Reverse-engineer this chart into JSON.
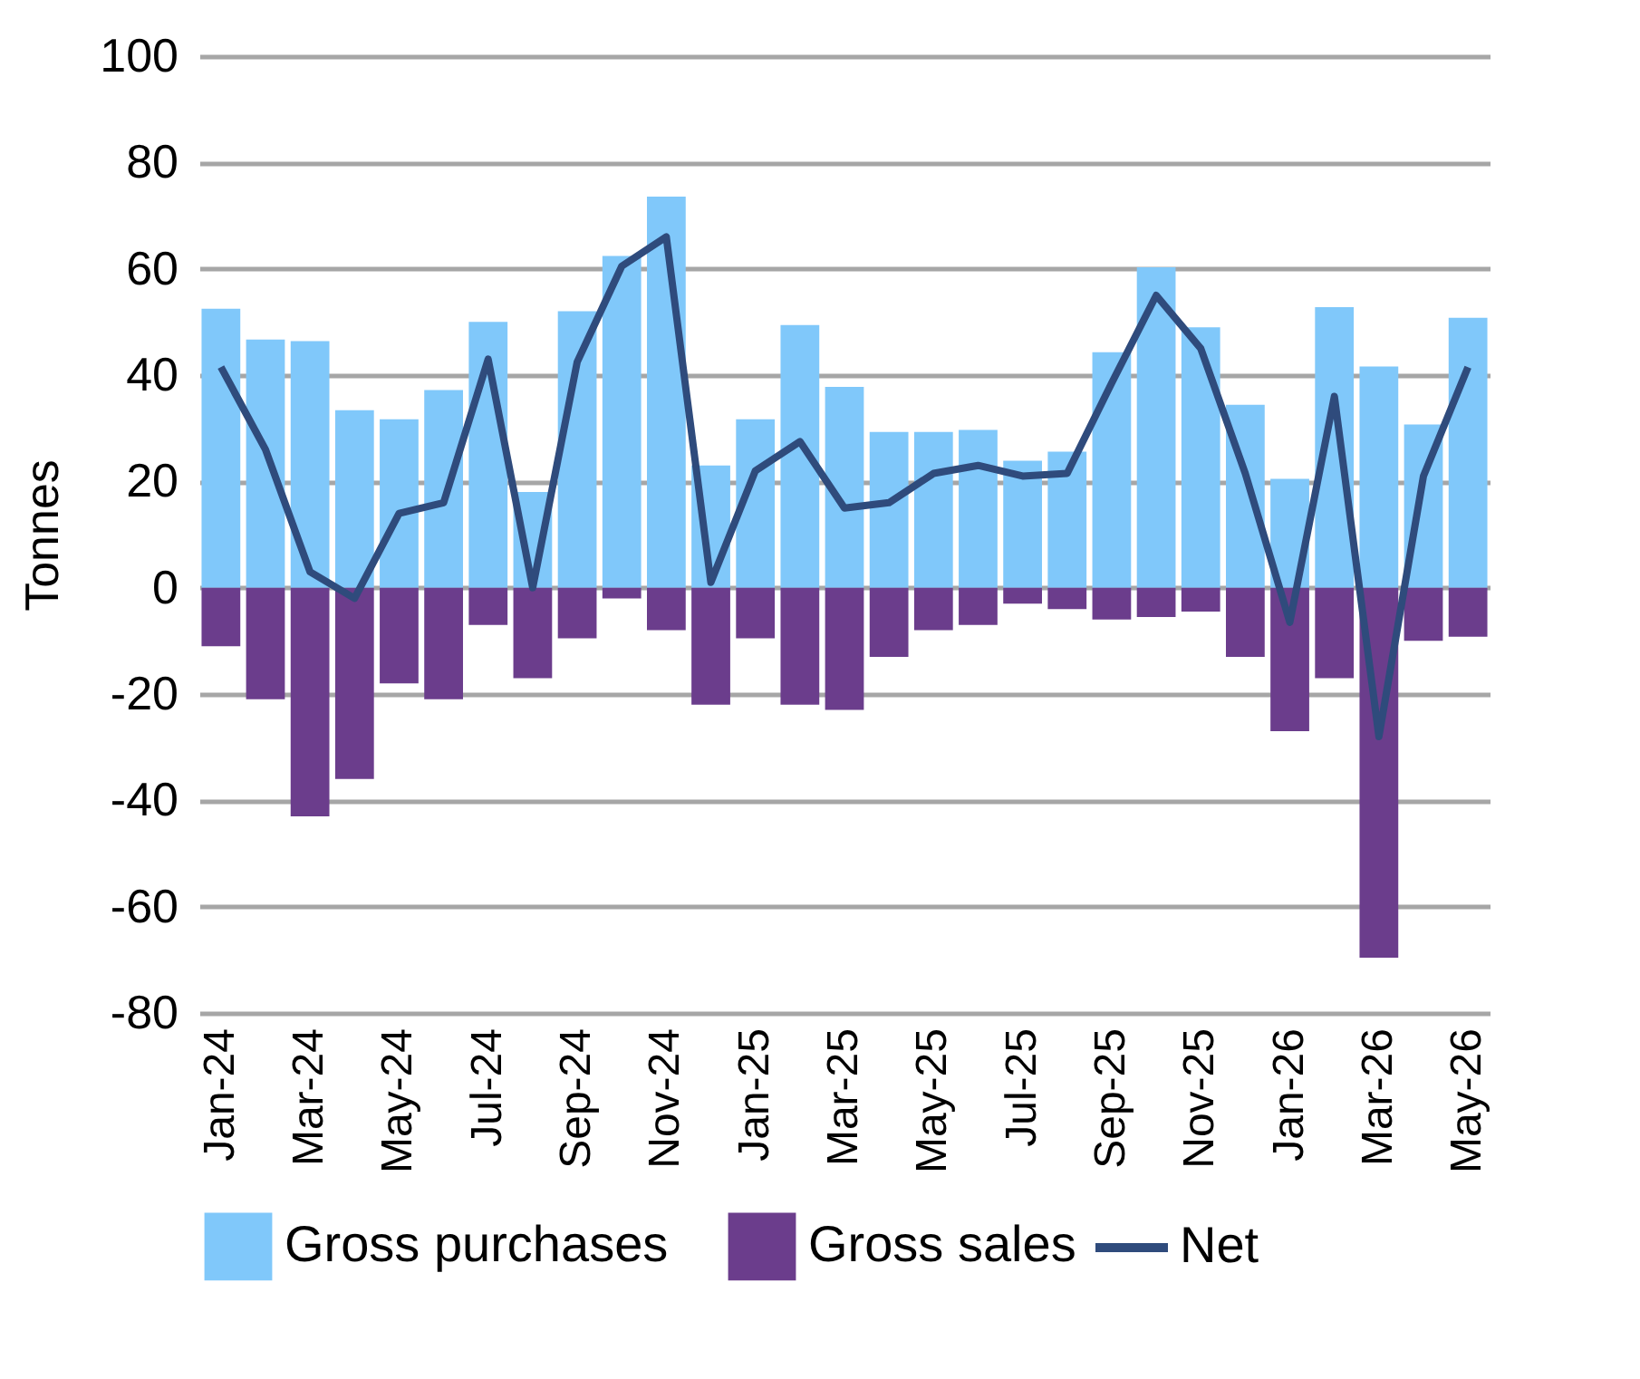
{
  "chart_data": {
    "type": "bar",
    "stacked": true,
    "ylabel": "Tonnes",
    "ylim": [
      -80,
      100
    ],
    "yticks": [
      -80,
      -60,
      -40,
      -20,
      0,
      20,
      40,
      60,
      80,
      100
    ],
    "grid": "y",
    "legend": "bottom",
    "marker": "none",
    "line_style": "solid",
    "categories": [
      "Jan-24",
      null,
      "Mar-24",
      null,
      "May-24",
      null,
      "Jul-24",
      null,
      "Sep-24",
      null,
      "Nov-24",
      null,
      "Jan-25",
      null,
      "Mar-25",
      null,
      "May-25",
      null,
      "Jul-25",
      null,
      "Sep-25",
      null,
      "Nov-25",
      null,
      "Jan-26",
      null,
      "Mar-26",
      null,
      "May-26"
    ],
    "series": [
      {
        "name": "Gross purchases",
        "color": "#80c8fa",
        "values": [
          52.5,
          46.7,
          46.4,
          33.4,
          31.7,
          37.2,
          50,
          18,
          52,
          62.4,
          73.6,
          23,
          31.7,
          49.4,
          37.8,
          29.3,
          29.3,
          29.7,
          23.9,
          25.6,
          44.3,
          60.3,
          49,
          34.4,
          20.5,
          52.8,
          41.6,
          30.7,
          50.8
        ]
      },
      {
        "name": "Gross sales",
        "color": "#6b3d8c",
        "values": [
          -11,
          -21,
          -43,
          -36,
          -18,
          -21,
          -7,
          -17,
          -9.5,
          -2,
          -8,
          -22,
          -9.5,
          -22,
          -23,
          -13,
          -8,
          -7,
          -3,
          -4,
          -6,
          -5.5,
          -4.5,
          -13,
          -27,
          -17,
          -69.6,
          -10,
          -9.2
        ]
      },
      {
        "name": "Net",
        "type": "line",
        "color": "#2f4b7c",
        "values": [
          41.5,
          26,
          3,
          -2,
          14,
          16,
          43,
          0,
          42.5,
          60.5,
          66,
          1,
          22,
          27.5,
          15,
          16,
          21.5,
          23,
          21,
          21.5,
          38.5,
          55,
          45,
          21.5,
          -6.5,
          36,
          -28,
          21,
          41.5
        ]
      }
    ]
  }
}
